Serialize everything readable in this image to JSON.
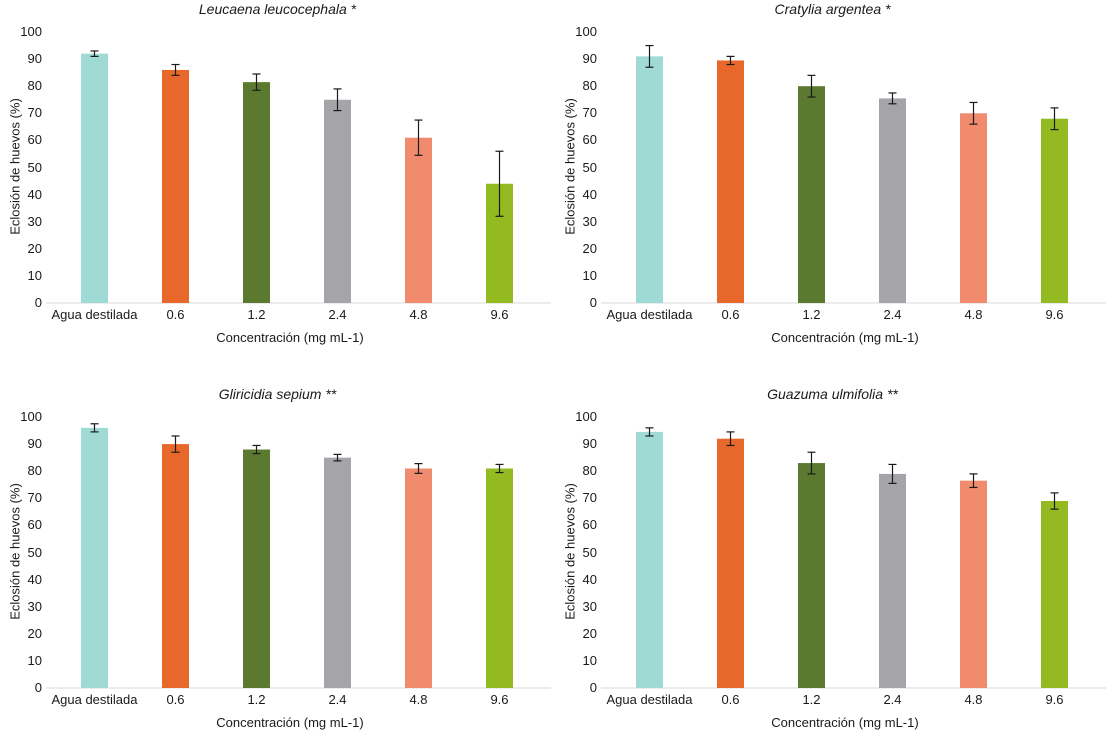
{
  "chart_data": [
    {
      "type": "bar",
      "title": "Leucaena leucocephala *",
      "xlabel": "Concentración (mg mL-1)",
      "ylabel": "Eclosión de huevos (%)",
      "ylim": [
        0,
        100
      ],
      "yticks": [
        0,
        10,
        20,
        30,
        40,
        50,
        60,
        70,
        80,
        90,
        100
      ],
      "categories": [
        "Agua destilada",
        "0.6",
        "1.2",
        "2.4",
        "4.8",
        "9.6"
      ],
      "values": [
        92,
        86,
        81.5,
        75,
        61,
        44
      ],
      "errors": [
        1,
        2,
        3,
        4,
        6.5,
        12
      ],
      "colors": [
        "#9fdbd4",
        "#e8672a",
        "#5b7a2f",
        "#a5a4a8",
        "#f08b6d",
        "#93bb21"
      ],
      "grid": false
    },
    {
      "type": "bar",
      "title": "Cratylia argentea *",
      "xlabel": "Concentración (mg mL-1)",
      "ylabel": "Eclosión de huevos (%)",
      "ylim": [
        0,
        100
      ],
      "yticks": [
        0,
        10,
        20,
        30,
        40,
        50,
        60,
        70,
        80,
        90,
        100
      ],
      "categories": [
        "Agua destilada",
        "0.6",
        "1.2",
        "2.4",
        "4.8",
        "9.6"
      ],
      "values": [
        91,
        89.5,
        80,
        75.5,
        70,
        68
      ],
      "errors": [
        4,
        1.5,
        4,
        2,
        4,
        4
      ],
      "colors": [
        "#9fdbd4",
        "#e8672a",
        "#5b7a2f",
        "#a5a4a8",
        "#f08b6d",
        "#93bb21"
      ],
      "grid": false
    },
    {
      "type": "bar",
      "title": "Gliricidia sepium **",
      "xlabel": "Concentración (mg mL-1)",
      "ylabel": "Eclosión de huevos (%)",
      "ylim": [
        0,
        100
      ],
      "yticks": [
        0,
        10,
        20,
        30,
        40,
        50,
        60,
        70,
        80,
        90,
        100
      ],
      "categories": [
        "Agua destilada",
        "0.6",
        "1.2",
        "2.4",
        "4.8",
        "9.6"
      ],
      "values": [
        96,
        90,
        88,
        85,
        81,
        81
      ],
      "errors": [
        1.5,
        3,
        1.5,
        1.2,
        1.8,
        1.5
      ],
      "colors": [
        "#9fdbd4",
        "#e8672a",
        "#5b7a2f",
        "#a5a4a8",
        "#f08b6d",
        "#93bb21"
      ],
      "grid": false
    },
    {
      "type": "bar",
      "title": "Guazuma ulmifolia **",
      "xlabel": "Concentración (mg mL-1)",
      "ylabel": "Eclosión de huevos (%)",
      "ylim": [
        0,
        100
      ],
      "yticks": [
        0,
        10,
        20,
        30,
        40,
        50,
        60,
        70,
        80,
        90,
        100
      ],
      "categories": [
        "Agua destilada",
        "0.6",
        "1.2",
        "2.4",
        "4.8",
        "9.6"
      ],
      "values": [
        94.5,
        92,
        83,
        79,
        76.5,
        69
      ],
      "errors": [
        1.5,
        2.5,
        4,
        3.5,
        2.5,
        3
      ],
      "colors": [
        "#9fdbd4",
        "#e8672a",
        "#5b7a2f",
        "#a5a4a8",
        "#f08b6d",
        "#93bb21"
      ],
      "grid": false
    }
  ]
}
